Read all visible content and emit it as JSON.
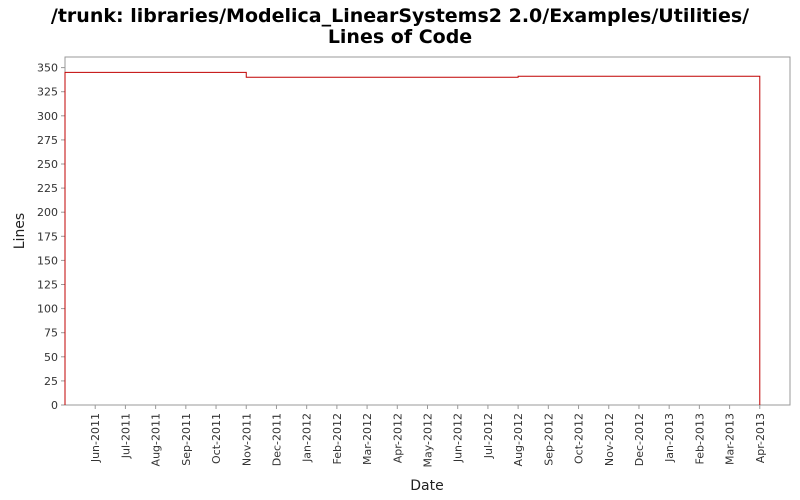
{
  "chart_data": {
    "type": "step",
    "title": [
      "/trunk: libraries/Modelica_LinearSystems2 2.0/Examples/Utilities/",
      "Lines of Code"
    ],
    "x_label": "Date",
    "y_label": "Lines",
    "x": [
      "2011-05",
      "2011-11",
      "2012-08",
      "2013-04"
    ],
    "series": [
      {
        "name": "Lines",
        "color": "#c00000",
        "values": [
          345,
          340,
          341,
          0
        ]
      }
    ],
    "xlim": [
      "2011-05",
      "2013-05"
    ],
    "xticks": [
      {
        "value": "2011-06",
        "label": "Jun-2011"
      },
      {
        "value": "2011-07",
        "label": "Jul-2011"
      },
      {
        "value": "2011-08",
        "label": "Aug-2011"
      },
      {
        "value": "2011-09",
        "label": "Sep-2011"
      },
      {
        "value": "2011-10",
        "label": "Oct-2011"
      },
      {
        "value": "2011-11",
        "label": "Nov-2011"
      },
      {
        "value": "2011-12",
        "label": "Dec-2011"
      },
      {
        "value": "2012-01",
        "label": "Jan-2012"
      },
      {
        "value": "2012-02",
        "label": "Feb-2012"
      },
      {
        "value": "2012-03",
        "label": "Mar-2012"
      },
      {
        "value": "2012-04",
        "label": "Apr-2012"
      },
      {
        "value": "2012-05",
        "label": "May-2012"
      },
      {
        "value": "2012-06",
        "label": "Jun-2012"
      },
      {
        "value": "2012-07",
        "label": "Jul-2012"
      },
      {
        "value": "2012-08",
        "label": "Aug-2012"
      },
      {
        "value": "2012-09",
        "label": "Sep-2012"
      },
      {
        "value": "2012-10",
        "label": "Oct-2012"
      },
      {
        "value": "2012-11",
        "label": "Nov-2012"
      },
      {
        "value": "2012-12",
        "label": "Dec-2012"
      },
      {
        "value": "2013-01",
        "label": "Jan-2013"
      },
      {
        "value": "2013-02",
        "label": "Feb-2013"
      },
      {
        "value": "2013-03",
        "label": "Mar-2013"
      },
      {
        "value": "2013-04",
        "label": "Apr-2013"
      }
    ],
    "ylim": [
      0,
      361
    ],
    "yticks": [
      0,
      25,
      50,
      75,
      100,
      125,
      150,
      175,
      200,
      225,
      250,
      275,
      300,
      325,
      350
    ],
    "grid": false
  }
}
